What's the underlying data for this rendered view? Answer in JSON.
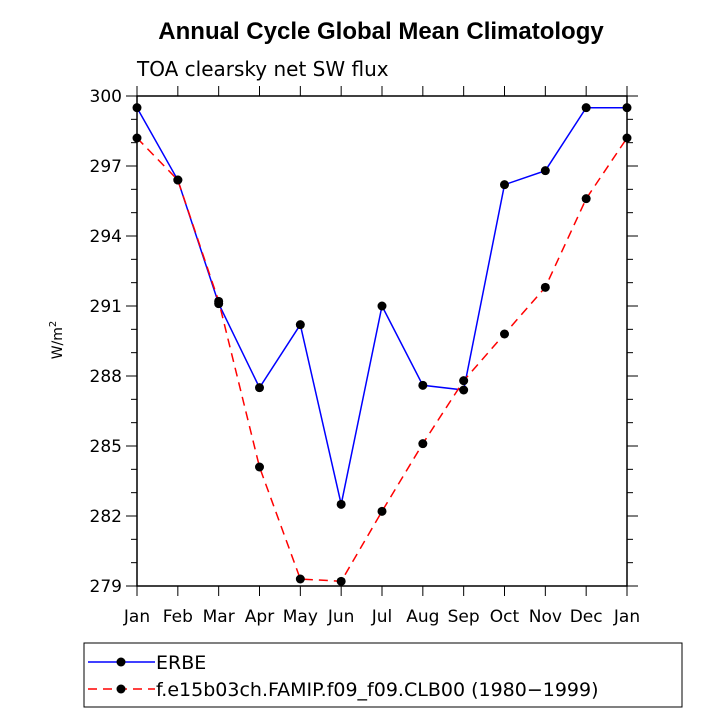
{
  "chart_data": {
    "type": "line",
    "title": "Annual Cycle Global Mean Climatology",
    "subtitle": "TOA clearsky net SW flux",
    "xlabel": "",
    "ylabel": "W/m",
    "ylabel_superscript": "2",
    "categories": [
      "Jan",
      "Feb",
      "Mar",
      "Apr",
      "May",
      "Jun",
      "Jul",
      "Aug",
      "Sep",
      "Oct",
      "Nov",
      "Dec",
      "Jan"
    ],
    "ylim": [
      279,
      300
    ],
    "yticks": [
      279,
      282,
      285,
      288,
      291,
      294,
      297,
      300
    ],
    "grid": false,
    "legend_position": "bottom",
    "series": [
      {
        "name": "ERBE",
        "color": "#0000ff",
        "dash": "solid",
        "marker": "circle",
        "values": [
          299.5,
          296.4,
          291.1,
          287.5,
          290.2,
          282.5,
          291.0,
          287.6,
          287.4,
          296.2,
          296.8,
          299.5,
          299.5
        ]
      },
      {
        "name": "f.e15b03ch.FAMIP.f09_f09.CLB00 (1980−1999)",
        "color": "#ff0000",
        "dash": "dashed",
        "marker": "circle",
        "values": [
          298.2,
          296.4,
          291.2,
          284.1,
          279.3,
          279.2,
          282.2,
          285.1,
          287.8,
          289.8,
          291.8,
          295.6,
          298.2
        ]
      }
    ]
  }
}
